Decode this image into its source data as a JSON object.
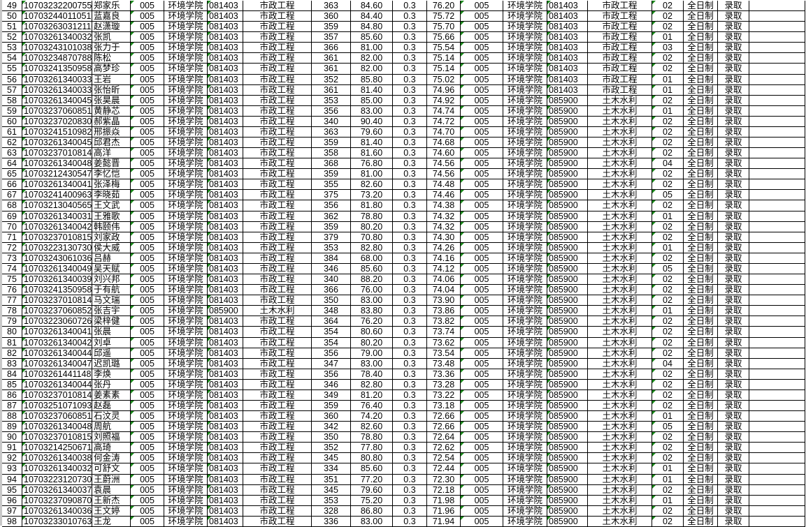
{
  "columns_fixed": {
    "college_code": "005",
    "college": "环境学院",
    "weight": "0.3",
    "mode": "全日制",
    "status": "录取"
  },
  "rows": [
    [
      "49",
      "107032322007555",
      "郑家乐",
      "005",
      "环境学院",
      "081403",
      "市政工程",
      "363",
      "84.60",
      "0.3",
      "76.20",
      "005",
      "环境学院",
      "081403",
      "市政工程",
      "02",
      "全日制",
      "录取"
    ],
    [
      "50",
      "107032440110518",
      "蓝嘉良",
      "005",
      "环境学院",
      "081403",
      "市政工程",
      "360",
      "84.40",
      "0.3",
      "75.72",
      "005",
      "环境学院",
      "081403",
      "市政工程",
      "02",
      "全日制",
      "录取"
    ],
    [
      "51",
      "107032630312110",
      "赵潇璇",
      "005",
      "环境学院",
      "081403",
      "市政工程",
      "359",
      "84.80",
      "0.3",
      "75.70",
      "005",
      "环境学院",
      "081403",
      "市政工程",
      "02",
      "全日制",
      "录取"
    ],
    [
      "52",
      "107032613400322",
      "张凯",
      "005",
      "环境学院",
      "081403",
      "市政工程",
      "357",
      "85.60",
      "0.3",
      "75.66",
      "005",
      "环境学院",
      "081403",
      "市政工程",
      "01",
      "全日制",
      "录取"
    ],
    [
      "53",
      "107032431010387",
      "张力于",
      "005",
      "环境学院",
      "081403",
      "市政工程",
      "366",
      "81.00",
      "0.3",
      "75.54",
      "005",
      "环境学院",
      "081403",
      "市政工程",
      "03",
      "全日制",
      "录取"
    ],
    [
      "54",
      "107032348707885",
      "陈松",
      "005",
      "环境学院",
      "081403",
      "市政工程",
      "361",
      "82.00",
      "0.3",
      "75.14",
      "005",
      "环境学院",
      "081403",
      "市政工程",
      "02",
      "全日制",
      "录取"
    ],
    [
      "55",
      "107032413509585",
      "高梦珍",
      "005",
      "环境学院",
      "081403",
      "市政工程",
      "361",
      "82.00",
      "0.3",
      "75.14",
      "005",
      "环境学院",
      "081403",
      "市政工程",
      "02",
      "全日制",
      "录取"
    ],
    [
      "56",
      "107032613400333",
      "王岩",
      "005",
      "环境学院",
      "081403",
      "市政工程",
      "352",
      "85.80",
      "0.3",
      "75.02",
      "005",
      "环境学院",
      "081403",
      "市政工程",
      "01",
      "全日制",
      "录取"
    ],
    [
      "57",
      "107032613400331",
      "张怡昕",
      "005",
      "环境学院",
      "081403",
      "市政工程",
      "361",
      "81.40",
      "0.3",
      "74.96",
      "005",
      "环境学院",
      "081403",
      "市政工程",
      "01",
      "全日制",
      "录取"
    ],
    [
      "58",
      "107032613400452",
      "张昊晨",
      "005",
      "环境学院",
      "081403",
      "市政工程",
      "353",
      "85.00",
      "0.3",
      "74.92",
      "005",
      "环境学院",
      "085900",
      "土木水利",
      "02",
      "全日制",
      "录取"
    ],
    [
      "59",
      "107032370608511",
      "黄静芯",
      "005",
      "环境学院",
      "081403",
      "市政工程",
      "356",
      "83.00",
      "0.3",
      "74.74",
      "005",
      "环境学院",
      "085900",
      "土木水利",
      "01",
      "全日制",
      "录取"
    ],
    [
      "60",
      "107032370208300",
      "郝紫晶",
      "005",
      "环境学院",
      "081403",
      "市政工程",
      "340",
      "90.40",
      "0.3",
      "74.72",
      "005",
      "环境学院",
      "085900",
      "土木水利",
      "02",
      "全日制",
      "录取"
    ],
    [
      "61",
      "107032415109829",
      "邢振焱",
      "005",
      "环境学院",
      "081403",
      "市政工程",
      "363",
      "79.60",
      "0.3",
      "74.70",
      "005",
      "环境学院",
      "085900",
      "土木水利",
      "02",
      "全日制",
      "录取"
    ],
    [
      "62",
      "107032613400457",
      "邱君杰",
      "005",
      "环境学院",
      "081403",
      "市政工程",
      "359",
      "81.40",
      "0.3",
      "74.68",
      "005",
      "环境学院",
      "085900",
      "土木水利",
      "02",
      "全日制",
      "录取"
    ],
    [
      "63",
      "107032370108142",
      "高洋",
      "005",
      "环境学院",
      "081403",
      "市政工程",
      "358",
      "81.60",
      "0.3",
      "74.60",
      "005",
      "环境学院",
      "085900",
      "土木水利",
      "02",
      "全日制",
      "录取"
    ],
    [
      "64",
      "107032613400480",
      "姜懿晋",
      "005",
      "环境学院",
      "081403",
      "市政工程",
      "368",
      "76.80",
      "0.3",
      "74.56",
      "005",
      "环境学院",
      "085900",
      "土木水利",
      "04",
      "全日制",
      "录取"
    ],
    [
      "65",
      "107032124305477",
      "李忆恺",
      "005",
      "环境学院",
      "081403",
      "市政工程",
      "359",
      "81.00",
      "0.3",
      "74.56",
      "005",
      "环境学院",
      "085900",
      "土木水利",
      "02",
      "全日制",
      "录取"
    ],
    [
      "66",
      "107032613400416",
      "张泽梅",
      "005",
      "环境学院",
      "081403",
      "市政工程",
      "355",
      "82.60",
      "0.3",
      "74.48",
      "005",
      "环境学院",
      "085900",
      "土木水利",
      "02",
      "全日制",
      "录取"
    ],
    [
      "67",
      "107032414009636",
      "李晓茹",
      "005",
      "环境学院",
      "081403",
      "市政工程",
      "375",
      "73.20",
      "0.3",
      "74.46",
      "005",
      "环境学院",
      "085900",
      "土木水利",
      "05",
      "全日制",
      "录取"
    ],
    [
      "68",
      "107032130405658",
      "王文武",
      "005",
      "环境学院",
      "081403",
      "市政工程",
      "356",
      "81.80",
      "0.3",
      "74.38",
      "005",
      "环境学院",
      "085900",
      "土木水利",
      "02",
      "全日制",
      "录取"
    ],
    [
      "69",
      "107032613400311",
      "王雅歌",
      "005",
      "环境学院",
      "081403",
      "市政工程",
      "362",
      "78.80",
      "0.3",
      "74.32",
      "005",
      "环境学院",
      "085900",
      "土木水利",
      "01",
      "全日制",
      "录取"
    ],
    [
      "70",
      "107032613400424",
      "韩颐伟",
      "005",
      "环境学院",
      "081403",
      "市政工程",
      "359",
      "80.20",
      "0.3",
      "74.32",
      "005",
      "环境学院",
      "085900",
      "土木水利",
      "02",
      "全日制",
      "录取"
    ],
    [
      "71",
      "107032370108150",
      "刘家政",
      "005",
      "环境学院",
      "081403",
      "市政工程",
      "379",
      "70.80",
      "0.3",
      "74.30",
      "005",
      "环境学院",
      "085900",
      "土木水利",
      "02",
      "全日制",
      "录取"
    ],
    [
      "72",
      "107032231307308",
      "侯大威",
      "005",
      "环境学院",
      "081403",
      "市政工程",
      "353",
      "82.80",
      "0.3",
      "74.26",
      "005",
      "环境学院",
      "085900",
      "土木水利",
      "01",
      "全日制",
      "录取"
    ],
    [
      "73",
      "107032430610368",
      "吕赫",
      "005",
      "环境学院",
      "081403",
      "市政工程",
      "384",
      "68.00",
      "0.3",
      "74.16",
      "005",
      "环境学院",
      "085900",
      "土木水利",
      "02",
      "全日制",
      "录取"
    ],
    [
      "74",
      "107032613400490",
      "吴天赋",
      "005",
      "环境学院",
      "081403",
      "市政工程",
      "346",
      "85.60",
      "0.3",
      "74.12",
      "005",
      "环境学院",
      "085900",
      "土木水利",
      "05",
      "全日制",
      "录取"
    ],
    [
      "75",
      "107032613400394",
      "刘兴邦",
      "005",
      "环境学院",
      "081403",
      "市政工程",
      "340",
      "88.20",
      "0.3",
      "74.06",
      "005",
      "环境学院",
      "085900",
      "土木水利",
      "02",
      "全日制",
      "录取"
    ],
    [
      "76",
      "107032413509589",
      "于有航",
      "005",
      "环境学院",
      "081403",
      "市政工程",
      "366",
      "76.00",
      "0.3",
      "74.04",
      "005",
      "环境学院",
      "085900",
      "土木水利",
      "02",
      "全日制",
      "录取"
    ],
    [
      "77",
      "107032370108146",
      "马文瑞",
      "005",
      "环境学院",
      "081403",
      "市政工程",
      "350",
      "83.00",
      "0.3",
      "73.90",
      "005",
      "环境学院",
      "085900",
      "土木水利",
      "02",
      "全日制",
      "录取"
    ],
    [
      "78",
      "107032370608522",
      "张吉宇",
      "005",
      "环境学院",
      "085900",
      "土木水利",
      "348",
      "83.80",
      "0.3",
      "73.86",
      "005",
      "环境学院",
      "085900",
      "土木水利",
      "01",
      "全日制",
      "录取"
    ],
    [
      "79",
      "107032230607268",
      "梁梓健",
      "005",
      "环境学院",
      "081403",
      "市政工程",
      "364",
      "76.20",
      "0.3",
      "73.82",
      "005",
      "环境学院",
      "085900",
      "土木水利",
      "02",
      "全日制",
      "录取"
    ],
    [
      "80",
      "107032613400411",
      "张晨",
      "005",
      "环境学院",
      "081403",
      "市政工程",
      "354",
      "80.60",
      "0.3",
      "73.74",
      "005",
      "环境学院",
      "085900",
      "土木水利",
      "02",
      "全日制",
      "录取"
    ],
    [
      "81",
      "107032613400421",
      "刘卓",
      "005",
      "环境学院",
      "081403",
      "市政工程",
      "354",
      "80.20",
      "0.3",
      "73.62",
      "005",
      "环境学院",
      "085900",
      "土木水利",
      "02",
      "全日制",
      "录取"
    ],
    [
      "82",
      "107032613400442",
      "邱遥",
      "005",
      "环境学院",
      "081403",
      "市政工程",
      "356",
      "79.00",
      "0.3",
      "73.54",
      "005",
      "环境学院",
      "085900",
      "土木水利",
      "02",
      "全日制",
      "录取"
    ],
    [
      "83",
      "107032613400476",
      "迟凯璐",
      "005",
      "环境学院",
      "081403",
      "市政工程",
      "347",
      "83.00",
      "0.3",
      "73.48",
      "005",
      "环境学院",
      "085900",
      "土木水利",
      "04",
      "全日制",
      "录取"
    ],
    [
      "84",
      "107032614411489",
      "李焕",
      "005",
      "环境学院",
      "081403",
      "市政工程",
      "356",
      "78.40",
      "0.3",
      "73.36",
      "005",
      "环境学院",
      "085900",
      "土木水利",
      "02",
      "全日制",
      "录取"
    ],
    [
      "85",
      "107032613400446",
      "张丹",
      "005",
      "环境学院",
      "081403",
      "市政工程",
      "346",
      "82.80",
      "0.3",
      "73.28",
      "005",
      "环境学院",
      "085900",
      "土木水利",
      "02",
      "全日制",
      "录取"
    ],
    [
      "86",
      "107032370108148",
      "姜素素",
      "005",
      "环境学院",
      "081403",
      "市政工程",
      "349",
      "81.20",
      "0.3",
      "73.22",
      "005",
      "环境学院",
      "085900",
      "土木水利",
      "02",
      "全日制",
      "录取"
    ],
    [
      "87",
      "107032510710933",
      "赵磊",
      "005",
      "环境学院",
      "081403",
      "市政工程",
      "359",
      "76.40",
      "0.3",
      "73.18",
      "005",
      "环境学院",
      "085900",
      "土木水利",
      "02",
      "全日制",
      "录取"
    ],
    [
      "88",
      "107032370608510",
      "石汶灵",
      "005",
      "环境学院",
      "081403",
      "市政工程",
      "360",
      "74.20",
      "0.3",
      "72.66",
      "005",
      "环境学院",
      "085900",
      "土木水利",
      "01",
      "全日制",
      "录取"
    ],
    [
      "89",
      "107032613400488",
      "周航",
      "005",
      "环境学院",
      "081403",
      "市政工程",
      "342",
      "82.60",
      "0.3",
      "72.66",
      "005",
      "环境学院",
      "085900",
      "土木水利",
      "05",
      "全日制",
      "录取"
    ],
    [
      "90",
      "107032370108153",
      "刘照福",
      "005",
      "环境学院",
      "081403",
      "市政工程",
      "350",
      "78.80",
      "0.3",
      "72.64",
      "005",
      "环境学院",
      "085900",
      "土木水利",
      "02",
      "全日制",
      "录取"
    ],
    [
      "91",
      "107032142506710",
      "高琦",
      "005",
      "环境学院",
      "081403",
      "市政工程",
      "352",
      "77.80",
      "0.3",
      "72.62",
      "005",
      "环境学院",
      "085900",
      "土木水利",
      "02",
      "全日制",
      "录取"
    ],
    [
      "92",
      "107032613400389",
      "何金涛",
      "005",
      "环境学院",
      "081403",
      "市政工程",
      "345",
      "80.80",
      "0.3",
      "72.54",
      "005",
      "环境学院",
      "085900",
      "土木水利",
      "02",
      "全日制",
      "录取"
    ],
    [
      "93",
      "107032613400324",
      "可舒文",
      "005",
      "环境学院",
      "081403",
      "市政工程",
      "334",
      "85.60",
      "0.3",
      "72.44",
      "005",
      "环境学院",
      "085900",
      "土木水利",
      "01",
      "全日制",
      "录取"
    ],
    [
      "94",
      "107032231207300",
      "王蔚洲",
      "005",
      "环境学院",
      "081403",
      "市政工程",
      "351",
      "77.20",
      "0.3",
      "72.30",
      "005",
      "环境学院",
      "085900",
      "土木水利",
      "01",
      "全日制",
      "录取"
    ],
    [
      "95",
      "107032613400371",
      "袁晨",
      "005",
      "环境学院",
      "081403",
      "市政工程",
      "345",
      "79.60",
      "0.3",
      "72.18",
      "005",
      "环境学院",
      "085900",
      "土木水利",
      "02",
      "全日制",
      "录取"
    ],
    [
      "96",
      "107032370908707",
      "王新杰",
      "005",
      "环境学院",
      "081403",
      "市政工程",
      "353",
      "75.20",
      "0.3",
      "71.98",
      "005",
      "环境学院",
      "085900",
      "土木水利",
      "01",
      "全日制",
      "录取"
    ],
    [
      "97",
      "107032613400365",
      "王文婷",
      "005",
      "环境学院",
      "081403",
      "市政工程",
      "328",
      "86.80",
      "0.3",
      "71.96",
      "005",
      "环境学院",
      "085900",
      "土木水利",
      "02",
      "全日制",
      "录取"
    ],
    [
      "98",
      "107032330107630",
      "王龙",
      "005",
      "环境学院",
      "081403",
      "市政工程",
      "336",
      "83.00",
      "0.3",
      "71.94",
      "005",
      "环境学院",
      "085900",
      "土木水利",
      "02",
      "全日制",
      "录取"
    ]
  ],
  "colors": {
    "grid": "#000000",
    "text_note_marker": "#1a8a1a",
    "gutter": "#c8c8c8"
  }
}
